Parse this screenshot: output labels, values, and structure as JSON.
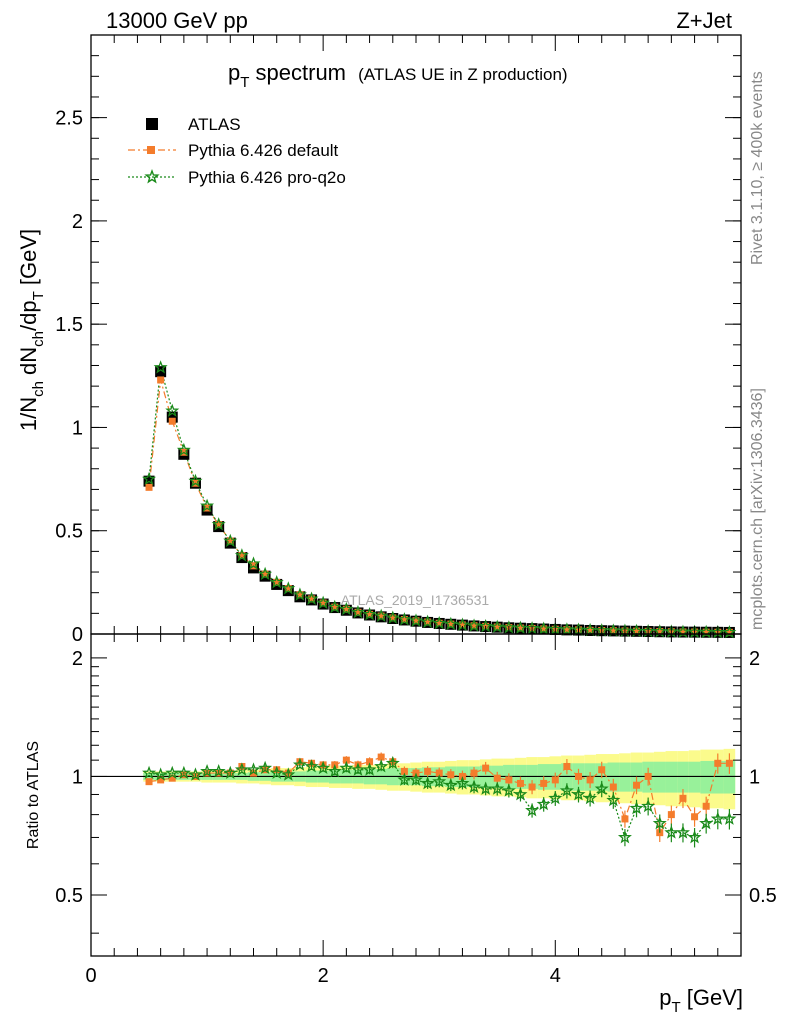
{
  "header": {
    "left": "13000 GeV pp",
    "right": "Z+Jet"
  },
  "side_labels": {
    "rivet": "Rivet 3.1.10, ≥ 400k events",
    "mcplots": "mcplots.cern.ch [arXiv:1306.3436]"
  },
  "chart_data": [
    {
      "type": "scatter",
      "title": "p",
      "title_sub": "T",
      "title_rest": " spectrum",
      "subtitle": "(ATLAS UE in Z production)",
      "ylabel": "1/N",
      "ylabel_parts": [
        "1/N",
        "ch",
        " dN",
        "ch",
        "/dp",
        "T",
        " [GeV]"
      ],
      "xlim": [
        0,
        5.6
      ],
      "ylim": [
        0,
        2.9
      ],
      "yticks": [
        0,
        0.5,
        1,
        1.5,
        2,
        2.5
      ],
      "ytick_labels": [
        "0",
        "0.5",
        "1",
        "1.5",
        "2",
        "2.5"
      ],
      "watermark": "ATLAS_2019_I1736531",
      "legend": [
        "ATLAS",
        "Pythia 6.426 default",
        "Pythia 6.426 pro-q2o"
      ],
      "colors": {
        "data": "#000000",
        "default": "#f47c2c",
        "proq2o": "#1a8a1a"
      },
      "x": [
        0.5,
        0.6,
        0.7,
        0.8,
        0.9,
        1.0,
        1.1,
        1.2,
        1.3,
        1.4,
        1.5,
        1.6,
        1.7,
        1.8,
        1.9,
        2.0,
        2.1,
        2.2,
        2.3,
        2.4,
        2.5,
        2.6,
        2.7,
        2.8,
        2.9,
        3.0,
        3.1,
        3.2,
        3.3,
        3.4,
        3.5,
        3.6,
        3.7,
        3.8,
        3.9,
        4.0,
        4.1,
        4.2,
        4.3,
        4.4,
        4.5,
        4.6,
        4.7,
        4.8,
        4.9,
        5.0,
        5.1,
        5.2,
        5.3,
        5.4,
        5.5
      ],
      "series": [
        {
          "name": "ATLAS",
          "values": [
            0.74,
            1.27,
            1.05,
            0.87,
            0.73,
            0.6,
            0.52,
            0.44,
            0.37,
            0.32,
            0.28,
            0.24,
            0.21,
            0.18,
            0.165,
            0.145,
            0.128,
            0.115,
            0.102,
            0.092,
            0.083,
            0.075,
            0.068,
            0.062,
            0.056,
            0.051,
            0.047,
            0.043,
            0.039,
            0.036,
            0.033,
            0.03,
            0.028,
            0.026,
            0.024,
            0.022,
            0.02,
            0.019,
            0.017,
            0.016,
            0.015,
            0.014,
            0.013,
            0.012,
            0.011,
            0.01,
            0.0095,
            0.009,
            0.0085,
            0.008,
            0.0075
          ]
        },
        {
          "name": "Pythia 6.426 default",
          "values": [
            0.71,
            1.23,
            1.03,
            0.88,
            0.73,
            0.61,
            0.53,
            0.45,
            0.38,
            0.33,
            0.29,
            0.25,
            0.22,
            0.19,
            0.17,
            0.15,
            0.13,
            0.12,
            0.105,
            0.095,
            0.087,
            0.078,
            0.07,
            0.064,
            0.058,
            0.052,
            0.048,
            0.044,
            0.04,
            0.037,
            0.034,
            0.031,
            0.029,
            0.027,
            0.025,
            0.023,
            0.021,
            0.02,
            0.018,
            0.017,
            0.016,
            0.015,
            0.014,
            0.013,
            0.012,
            0.011,
            0.01,
            0.0095,
            0.009,
            0.0085,
            0.008
          ]
        },
        {
          "name": "Pythia 6.426 pro-q2o",
          "values": [
            0.75,
            1.29,
            1.08,
            0.89,
            0.74,
            0.62,
            0.53,
            0.45,
            0.38,
            0.34,
            0.29,
            0.25,
            0.22,
            0.19,
            0.17,
            0.15,
            0.13,
            0.12,
            0.105,
            0.095,
            0.087,
            0.078,
            0.07,
            0.064,
            0.058,
            0.052,
            0.048,
            0.044,
            0.04,
            0.037,
            0.034,
            0.031,
            0.029,
            0.027,
            0.025,
            0.023,
            0.021,
            0.02,
            0.018,
            0.017,
            0.016,
            0.015,
            0.014,
            0.013,
            0.012,
            0.011,
            0.01,
            0.0095,
            0.009,
            0.0085,
            0.008
          ]
        }
      ]
    },
    {
      "type": "scatter",
      "ylabel": "Ratio to ATLAS",
      "xlabel": "p",
      "xlabel_sub": "T",
      "xlabel_rest": " [GeV]",
      "xlim": [
        0,
        5.6
      ],
      "ylim": [
        0.35,
        2.3
      ],
      "xticks": [
        0,
        2,
        4
      ],
      "xtick_labels": [
        "0",
        "2",
        "4"
      ],
      "yticks": [
        0.5,
        1,
        2
      ],
      "ytick_labels": [
        "0.5",
        "1",
        "2"
      ],
      "x": [
        0.5,
        0.6,
        0.7,
        0.8,
        0.9,
        1.0,
        1.1,
        1.2,
        1.3,
        1.4,
        1.5,
        1.6,
        1.7,
        1.8,
        1.9,
        2.0,
        2.1,
        2.2,
        2.3,
        2.4,
        2.5,
        2.6,
        2.7,
        2.8,
        2.9,
        3.0,
        3.1,
        3.2,
        3.3,
        3.4,
        3.5,
        3.6,
        3.7,
        3.8,
        3.9,
        4.0,
        4.1,
        4.2,
        4.3,
        4.4,
        4.5,
        4.6,
        4.7,
        4.8,
        4.9,
        5.0,
        5.1,
        5.2,
        5.3,
        5.4,
        5.5
      ],
      "band_inner": [
        0.02,
        0.02,
        0.02,
        0.02,
        0.02,
        0.02,
        0.02,
        0.02,
        0.02,
        0.025,
        0.025,
        0.03,
        0.03,
        0.03,
        0.035,
        0.035,
        0.04,
        0.04,
        0.04,
        0.045,
        0.045,
        0.05,
        0.05,
        0.05,
        0.055,
        0.055,
        0.06,
        0.06,
        0.06,
        0.065,
        0.065,
        0.07,
        0.07,
        0.07,
        0.075,
        0.075,
        0.08,
        0.08,
        0.08,
        0.08,
        0.085,
        0.085,
        0.085,
        0.09,
        0.09,
        0.09,
        0.09,
        0.09,
        0.095,
        0.095,
        0.095
      ],
      "band_outer": [
        0.03,
        0.03,
        0.03,
        0.03,
        0.03,
        0.035,
        0.035,
        0.035,
        0.04,
        0.04,
        0.045,
        0.05,
        0.05,
        0.055,
        0.06,
        0.06,
        0.065,
        0.065,
        0.07,
        0.07,
        0.075,
        0.08,
        0.08,
        0.085,
        0.09,
        0.09,
        0.095,
        0.1,
        0.1,
        0.105,
        0.11,
        0.11,
        0.115,
        0.12,
        0.12,
        0.125,
        0.13,
        0.13,
        0.135,
        0.14,
        0.14,
        0.145,
        0.15,
        0.15,
        0.155,
        0.16,
        0.16,
        0.165,
        0.17,
        0.17,
        0.175
      ],
      "series": [
        {
          "name": "Pythia 6.426 default",
          "values": [
            0.97,
            0.98,
            0.99,
            1.01,
            1.0,
            1.02,
            1.02,
            1.02,
            1.06,
            1.02,
            1.04,
            1.04,
            1.02,
            1.09,
            1.08,
            1.07,
            1.07,
            1.1,
            1.07,
            1.09,
            1.12,
            1.09,
            1.03,
            1.02,
            1.03,
            1.02,
            1.01,
            1.0,
            1.02,
            1.05,
            0.99,
            0.98,
            0.96,
            0.94,
            0.96,
            0.98,
            1.06,
            1.0,
            0.98,
            1.04,
            0.94,
            0.78,
            0.95,
            1.0,
            0.72,
            0.8,
            0.88,
            0.79,
            0.84,
            1.08,
            1.08
          ]
        },
        {
          "name": "Pythia 6.426 pro-q2o",
          "values": [
            1.02,
            1.01,
            1.02,
            1.02,
            1.01,
            1.03,
            1.03,
            1.02,
            1.04,
            1.04,
            1.05,
            1.02,
            1.01,
            1.07,
            1.06,
            1.05,
            1.03,
            1.05,
            1.04,
            1.04,
            1.06,
            1.08,
            0.98,
            0.98,
            0.96,
            0.97,
            0.95,
            0.96,
            0.94,
            0.93,
            0.93,
            0.92,
            0.9,
            0.82,
            0.85,
            0.88,
            0.92,
            0.9,
            0.88,
            0.93,
            0.87,
            0.7,
            0.83,
            0.84,
            0.76,
            0.72,
            0.72,
            0.7,
            0.76,
            0.78,
            0.78
          ]
        }
      ]
    }
  ]
}
